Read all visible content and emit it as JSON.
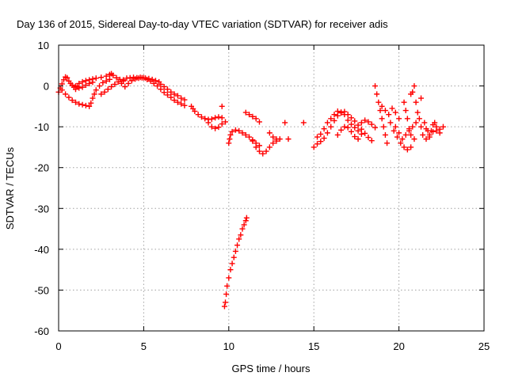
{
  "chart_data": {
    "type": "scatter",
    "title": "Day 136 of 2015, Sidereal Day-to-day VTEC variation (SDTVAR) for receiver adis",
    "xlabel": "GPS time / hours",
    "ylabel": "SDTVAR / TECUs",
    "xlim": [
      0,
      25
    ],
    "ylim": [
      -60,
      10
    ],
    "xticks": [
      0,
      5,
      10,
      15,
      20,
      25
    ],
    "yticks": [
      10,
      0,
      -10,
      -20,
      -30,
      -40,
      -50,
      -60
    ],
    "grid": true,
    "marker": "+",
    "color": "#ff0000",
    "series": [
      {
        "name": "SDTVAR",
        "points": [
          [
            0.0,
            -1.5
          ],
          [
            0.1,
            -0.5
          ],
          [
            0.2,
            0.5
          ],
          [
            0.3,
            1.5
          ],
          [
            0.4,
            2.2
          ],
          [
            0.5,
            2.0
          ],
          [
            0.6,
            1.2
          ],
          [
            0.7,
            0.6
          ],
          [
            0.8,
            0.2
          ],
          [
            0.9,
            -0.3
          ],
          [
            1.0,
            -0.8
          ],
          [
            1.1,
            -0.2
          ],
          [
            0.2,
            -1.0
          ],
          [
            0.4,
            -2.0
          ],
          [
            0.6,
            -2.8
          ],
          [
            0.8,
            -3.5
          ],
          [
            1.0,
            -4.0
          ],
          [
            1.2,
            -4.4
          ],
          [
            1.4,
            -4.6
          ],
          [
            1.6,
            -4.8
          ],
          [
            1.8,
            -5.0
          ],
          [
            1.9,
            -4.2
          ],
          [
            2.0,
            -3.0
          ],
          [
            2.1,
            -2.0
          ],
          [
            2.2,
            -1.0
          ],
          [
            2.4,
            0.0
          ],
          [
            2.6,
            0.8
          ],
          [
            2.8,
            1.2
          ],
          [
            3.0,
            1.6
          ],
          [
            1.0,
            0.0
          ],
          [
            1.2,
            0.6
          ],
          [
            1.4,
            1.0
          ],
          [
            1.6,
            1.3
          ],
          [
            1.8,
            1.5
          ],
          [
            2.0,
            1.7
          ],
          [
            2.2,
            1.9
          ],
          [
            2.5,
            2.1
          ],
          [
            2.8,
            2.4
          ],
          [
            3.0,
            2.8
          ],
          [
            3.1,
            3.0
          ],
          [
            3.2,
            2.6
          ],
          [
            3.4,
            2.0
          ],
          [
            3.6,
            1.6
          ],
          [
            3.8,
            1.2
          ],
          [
            1.2,
            -0.5
          ],
          [
            1.4,
            -0.3
          ],
          [
            1.6,
            0.2
          ],
          [
            1.8,
            0.6
          ],
          [
            2.0,
            0.9
          ],
          [
            2.5,
            -2.0
          ],
          [
            2.7,
            -1.5
          ],
          [
            2.9,
            -0.8
          ],
          [
            3.1,
            -0.2
          ],
          [
            3.3,
            0.4
          ],
          [
            3.5,
            1.0
          ],
          [
            3.7,
            0.6
          ],
          [
            3.9,
            -0.2
          ],
          [
            4.1,
            0.6
          ],
          [
            4.3,
            1.3
          ],
          [
            4.5,
            1.7
          ],
          [
            4.7,
            1.9
          ],
          [
            4.9,
            2.0
          ],
          [
            5.1,
            1.9
          ],
          [
            5.3,
            1.8
          ],
          [
            5.5,
            1.6
          ],
          [
            5.7,
            1.3
          ],
          [
            5.9,
            1.0
          ],
          [
            3.8,
            1.5
          ],
          [
            4.0,
            1.9
          ],
          [
            4.2,
            2.0
          ],
          [
            4.4,
            2.1
          ],
          [
            4.6,
            2.0
          ],
          [
            4.8,
            2.1
          ],
          [
            5.0,
            2.0
          ],
          [
            5.2,
            1.6
          ],
          [
            5.4,
            1.2
          ],
          [
            5.6,
            0.6
          ],
          [
            5.8,
            0.0
          ],
          [
            6.0,
            -0.8
          ],
          [
            6.2,
            -1.6
          ],
          [
            6.4,
            -2.2
          ],
          [
            6.6,
            -2.8
          ],
          [
            6.8,
            -3.5
          ],
          [
            7.0,
            -4.0
          ],
          [
            7.2,
            -4.4
          ],
          [
            7.4,
            -4.8
          ],
          [
            6.0,
            0.4
          ],
          [
            6.2,
            -0.2
          ],
          [
            6.4,
            -0.8
          ],
          [
            6.6,
            -1.5
          ],
          [
            6.8,
            -2.0
          ],
          [
            7.0,
            -2.4
          ],
          [
            7.2,
            -3.0
          ],
          [
            7.4,
            -3.4
          ],
          [
            7.8,
            -5.0
          ],
          [
            7.9,
            -5.6
          ],
          [
            8.0,
            -6.2
          ],
          [
            8.2,
            -7.0
          ],
          [
            8.4,
            -7.6
          ],
          [
            8.6,
            -8.0
          ],
          [
            8.8,
            -8.2
          ],
          [
            9.0,
            -8.1
          ],
          [
            9.2,
            -7.8
          ],
          [
            9.4,
            -7.6
          ],
          [
            9.6,
            -7.8
          ],
          [
            8.8,
            -9.0
          ],
          [
            9.0,
            -10.0
          ],
          [
            9.2,
            -10.4
          ],
          [
            9.4,
            -10.1
          ],
          [
            9.6,
            -9.3
          ],
          [
            9.8,
            -8.8
          ],
          [
            9.6,
            -5.0
          ],
          [
            9.75,
            -54.0
          ],
          [
            9.8,
            -53.0
          ],
          [
            9.85,
            -51.0
          ],
          [
            9.9,
            -49.0
          ],
          [
            10.0,
            -47.0
          ],
          [
            10.1,
            -45.0
          ],
          [
            10.2,
            -43.5
          ],
          [
            10.3,
            -42.0
          ],
          [
            10.4,
            -40.5
          ],
          [
            10.5,
            -39.0
          ],
          [
            10.6,
            -37.5
          ],
          [
            10.7,
            -36.5
          ],
          [
            10.8,
            -35.0
          ],
          [
            10.9,
            -34.0
          ],
          [
            11.0,
            -33.0
          ],
          [
            11.05,
            -32.3
          ],
          [
            10.0,
            -14.0
          ],
          [
            10.05,
            -13.0
          ],
          [
            10.1,
            -12.0
          ],
          [
            10.2,
            -11.2
          ],
          [
            10.4,
            -10.8
          ],
          [
            10.6,
            -11.0
          ],
          [
            10.8,
            -11.5
          ],
          [
            11.0,
            -12.0
          ],
          [
            11.2,
            -12.5
          ],
          [
            11.4,
            -13.2
          ],
          [
            11.6,
            -14.0
          ],
          [
            11.8,
            -14.6
          ],
          [
            11.0,
            -6.5
          ],
          [
            11.2,
            -7.0
          ],
          [
            11.4,
            -7.5
          ],
          [
            11.6,
            -8.0
          ],
          [
            11.8,
            -8.8
          ],
          [
            11.4,
            -13.5
          ],
          [
            11.6,
            -15.0
          ],
          [
            11.8,
            -16.0
          ],
          [
            12.0,
            -16.6
          ],
          [
            12.2,
            -16.0
          ],
          [
            12.4,
            -15.0
          ],
          [
            12.6,
            -14.0
          ],
          [
            12.8,
            -13.0
          ],
          [
            12.4,
            -11.5
          ],
          [
            12.6,
            -12.5
          ],
          [
            12.8,
            -13.5
          ],
          [
            13.0,
            -13.0
          ],
          [
            13.3,
            -9.0
          ],
          [
            13.5,
            -13.0
          ],
          [
            14.4,
            -9.0
          ],
          [
            15.0,
            -15.0
          ],
          [
            15.2,
            -14.2
          ],
          [
            15.4,
            -13.6
          ],
          [
            15.6,
            -12.8
          ],
          [
            15.8,
            -11.5
          ],
          [
            16.0,
            -10.0
          ],
          [
            16.2,
            -8.5
          ],
          [
            16.4,
            -7.3
          ],
          [
            16.6,
            -6.6
          ],
          [
            16.8,
            -6.3
          ],
          [
            17.0,
            -7.0
          ],
          [
            17.2,
            -7.8
          ],
          [
            17.4,
            -8.6
          ],
          [
            17.6,
            -9.6
          ],
          [
            17.8,
            -10.6
          ],
          [
            18.0,
            -11.6
          ],
          [
            18.2,
            -12.6
          ],
          [
            18.4,
            -13.4
          ],
          [
            15.2,
            -12.5
          ],
          [
            15.4,
            -11.8
          ],
          [
            15.6,
            -10.5
          ],
          [
            15.8,
            -9.0
          ],
          [
            16.0,
            -8.0
          ],
          [
            16.2,
            -7.0
          ],
          [
            16.4,
            -6.2
          ],
          [
            16.6,
            -6.4
          ],
          [
            16.8,
            -7.0
          ],
          [
            17.0,
            -8.4
          ],
          [
            17.2,
            -9.4
          ],
          [
            17.4,
            -10.2
          ],
          [
            17.6,
            -11.0
          ],
          [
            17.8,
            -11.8
          ],
          [
            16.4,
            -12.0
          ],
          [
            16.6,
            -10.8
          ],
          [
            16.8,
            -10.0
          ],
          [
            17.0,
            -10.2
          ],
          [
            17.2,
            -11.2
          ],
          [
            17.4,
            -12.4
          ],
          [
            17.6,
            -13.0
          ],
          [
            17.8,
            -9.0
          ],
          [
            18.0,
            -8.4
          ],
          [
            18.2,
            -8.8
          ],
          [
            18.4,
            -9.4
          ],
          [
            18.6,
            -10.2
          ],
          [
            18.6,
            0.0
          ],
          [
            18.7,
            -2.0
          ],
          [
            18.8,
            -4.0
          ],
          [
            18.9,
            -6.0
          ],
          [
            19.0,
            -8.0
          ],
          [
            19.1,
            -10.0
          ],
          [
            19.2,
            -12.0
          ],
          [
            19.3,
            -14.0
          ],
          [
            19.0,
            -5.0
          ],
          [
            19.2,
            -6.0
          ],
          [
            19.4,
            -7.0
          ],
          [
            19.6,
            -5.5
          ],
          [
            19.8,
            -6.5
          ],
          [
            20.0,
            -8.0
          ],
          [
            19.5,
            -9.0
          ],
          [
            19.7,
            -11.0
          ],
          [
            19.9,
            -12.5
          ],
          [
            20.1,
            -14.0
          ],
          [
            20.3,
            -15.0
          ],
          [
            20.5,
            -15.6
          ],
          [
            20.7,
            -15.0
          ],
          [
            20.9,
            -13.0
          ],
          [
            19.8,
            -10.0
          ],
          [
            20.0,
            -11.5
          ],
          [
            20.2,
            -13.0
          ],
          [
            20.4,
            -12.0
          ],
          [
            20.6,
            -11.0
          ],
          [
            20.8,
            -10.0
          ],
          [
            21.0,
            -9.0
          ],
          [
            20.3,
            -4.0
          ],
          [
            20.4,
            -6.0
          ],
          [
            20.5,
            -8.0
          ],
          [
            20.6,
            -10.5
          ],
          [
            20.7,
            -12.0
          ],
          [
            20.7,
            -2.0
          ],
          [
            20.8,
            -1.5
          ],
          [
            20.9,
            0.0
          ],
          [
            21.0,
            -4.0
          ],
          [
            21.1,
            -6.5
          ],
          [
            21.2,
            -8.0
          ],
          [
            21.3,
            -10.0
          ],
          [
            21.4,
            -12.0
          ],
          [
            21.3,
            -3.0
          ],
          [
            21.5,
            -9.0
          ],
          [
            21.6,
            -10.5
          ],
          [
            21.7,
            -11.0
          ],
          [
            21.8,
            -12.0
          ],
          [
            21.9,
            -11.0
          ],
          [
            22.0,
            -9.5
          ],
          [
            22.1,
            -9.0
          ],
          [
            22.2,
            -10.0
          ],
          [
            22.4,
            -10.6
          ],
          [
            22.6,
            -10.0
          ],
          [
            21.6,
            -13.0
          ],
          [
            21.8,
            -12.5
          ],
          [
            22.0,
            -11.2
          ],
          [
            22.2,
            -11.0
          ],
          [
            22.4,
            -11.5
          ]
        ]
      }
    ]
  }
}
